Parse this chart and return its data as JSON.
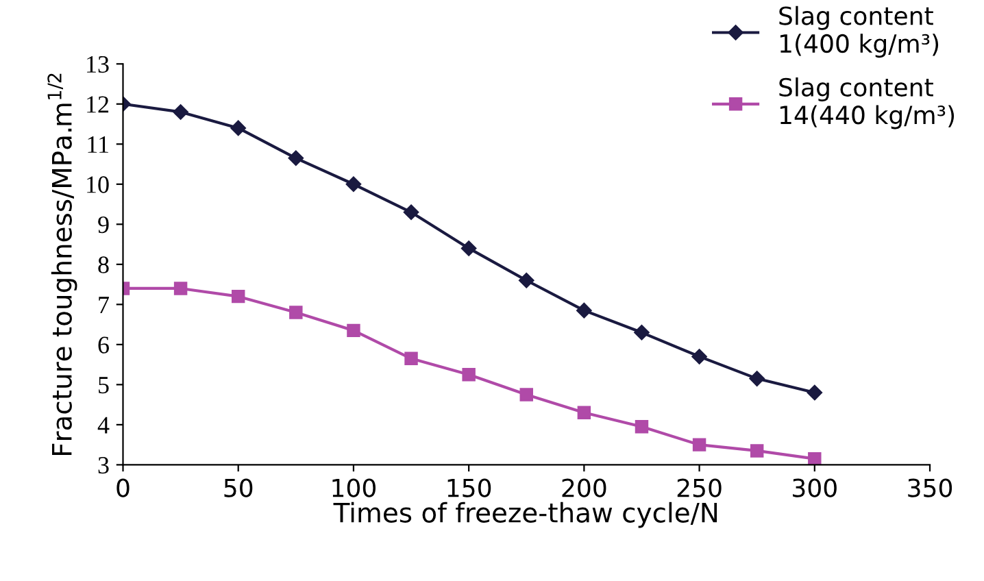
{
  "chart_data": {
    "type": "line",
    "xlabel": "Times of freeze-thaw cycle/N",
    "ylabel": "Fracture toughness/MPa.m$^{1/2}$",
    "x": [
      0,
      25,
      50,
      75,
      100,
      125,
      150,
      175,
      200,
      225,
      250,
      275,
      300
    ],
    "series": [
      {
        "name": "Slag content\n1(400 kg/m³)",
        "color": "#1a1a40",
        "marker": "diamond",
        "values": [
          12.0,
          11.8,
          11.4,
          10.65,
          10.0,
          9.3,
          8.4,
          7.6,
          6.85,
          6.3,
          5.7,
          5.15,
          4.8
        ]
      },
      {
        "name": "Slag content\n14(440 kg/m³)",
        "color": "#b04aa8",
        "marker": "square",
        "values": [
          7.4,
          7.4,
          7.2,
          6.8,
          6.35,
          5.65,
          5.25,
          4.75,
          4.3,
          3.95,
          3.5,
          3.35,
          3.15
        ]
      }
    ],
    "xlim": [
      0,
      350
    ],
    "xticks": [
      0,
      50,
      100,
      150,
      200,
      250,
      300,
      350
    ],
    "ylim": [
      3,
      13
    ],
    "yticks": [
      3,
      4,
      5,
      6,
      7,
      8,
      9,
      10,
      11,
      12,
      13
    ],
    "grid": false,
    "legend": "top right",
    "line_style": "solid"
  }
}
